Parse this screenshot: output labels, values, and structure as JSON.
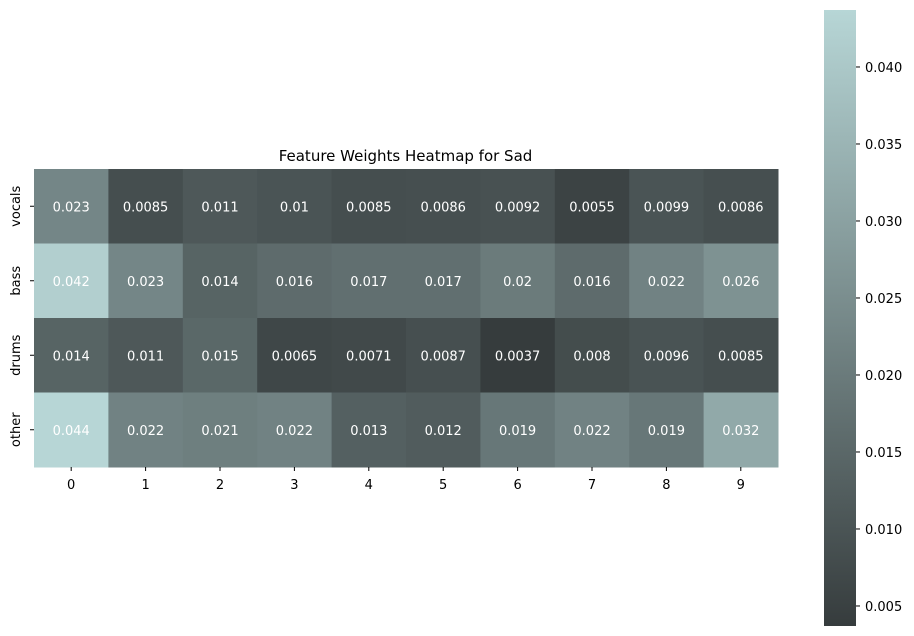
{
  "chart_data": {
    "type": "heatmap",
    "title": "Feature Weights Heatmap for Sad",
    "xlabel": "",
    "ylabel": "",
    "x_categories": [
      "0",
      "1",
      "2",
      "3",
      "4",
      "5",
      "6",
      "7",
      "8",
      "9"
    ],
    "y_categories": [
      "vocals",
      "bass",
      "drums",
      "other"
    ],
    "values": [
      [
        0.023,
        0.0085,
        0.011,
        0.01,
        0.0085,
        0.0086,
        0.0092,
        0.0055,
        0.0099,
        0.0086
      ],
      [
        0.042,
        0.023,
        0.014,
        0.016,
        0.017,
        0.017,
        0.02,
        0.016,
        0.022,
        0.026
      ],
      [
        0.014,
        0.011,
        0.015,
        0.0065,
        0.0071,
        0.0087,
        0.0037,
        0.008,
        0.0096,
        0.0085
      ],
      [
        0.044,
        0.022,
        0.021,
        0.022,
        0.013,
        0.012,
        0.019,
        0.022,
        0.019,
        0.032
      ]
    ],
    "labels": [
      [
        "0.023",
        "0.0085",
        "0.011",
        "0.01",
        "0.0085",
        "0.0086",
        "0.0092",
        "0.0055",
        "0.0099",
        "0.0086"
      ],
      [
        "0.042",
        "0.023",
        "0.014",
        "0.016",
        "0.017",
        "0.017",
        "0.02",
        "0.016",
        "0.022",
        "0.026"
      ],
      [
        "0.014",
        "0.011",
        "0.015",
        "0.0065",
        "0.0071",
        "0.0087",
        "0.0037",
        "0.008",
        "0.0096",
        "0.0085"
      ],
      [
        "0.044",
        "0.022",
        "0.021",
        "0.022",
        "0.013",
        "0.012",
        "0.019",
        "0.022",
        "0.019",
        "0.032"
      ]
    ],
    "colorbar": {
      "range": [
        0.0037,
        0.0437
      ],
      "ticks": [
        0.005,
        0.01,
        0.015,
        0.02,
        0.025,
        0.03,
        0.035,
        0.04
      ],
      "tick_labels": [
        "0.005",
        "0.010",
        "0.015",
        "0.020",
        "0.025",
        "0.030",
        "0.035",
        "0.040"
      ],
      "color_low": "#363c3d",
      "color_high": "#b7d6d6"
    },
    "annotation_color": "#ffffff"
  }
}
